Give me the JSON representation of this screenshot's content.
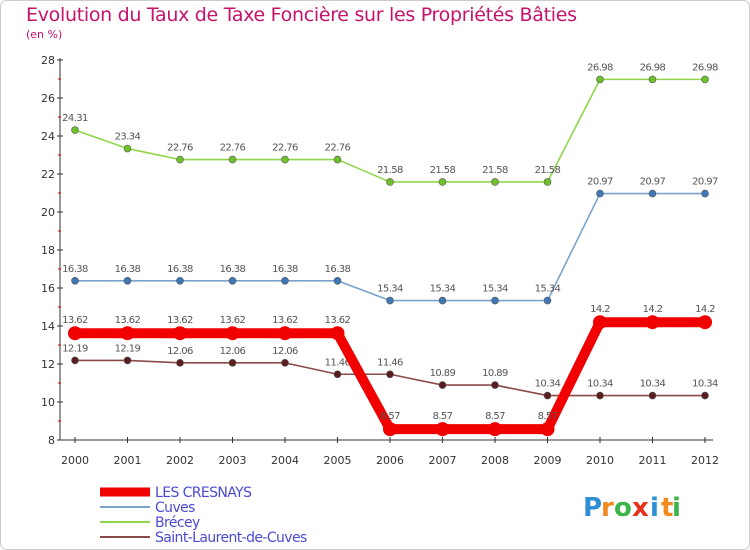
{
  "chart_data": {
    "type": "line",
    "title": "Evolution du Taux de Taxe Foncière sur les Propriétés Bâties",
    "unit_label": "(en %)",
    "ylim": [
      8,
      28
    ],
    "y_ticks": [
      "8",
      "10",
      "12",
      "14",
      "16",
      "18",
      "20",
      "22",
      "24",
      "26",
      "28"
    ],
    "x": [
      "2000",
      "2001",
      "2002",
      "2003",
      "2004",
      "2005",
      "2006",
      "2007",
      "2008",
      "2009",
      "2010",
      "2011",
      "2012"
    ],
    "series": [
      {
        "name": "Brécey",
        "color": "#8fd64a",
        "marker": "#6fc02a",
        "values": [
          24.31,
          23.34,
          22.76,
          22.76,
          22.76,
          22.76,
          21.58,
          21.58,
          21.58,
          21.58,
          26.98,
          26.98,
          26.98
        ],
        "labels": [
          "24.31",
          "23.34",
          "22.76",
          "22.76",
          "22.76",
          "22.76",
          "21.58",
          "21.58",
          "21.58",
          "21.58",
          "26.98",
          "26.98",
          "26.98"
        ]
      },
      {
        "name": "Cuves",
        "color": "#7aa3cc",
        "marker": "#3f78b5",
        "values": [
          16.38,
          16.38,
          16.38,
          16.38,
          16.38,
          16.38,
          15.34,
          15.34,
          15.34,
          15.34,
          20.97,
          20.97,
          20.97
        ],
        "labels": [
          "16.38",
          "16.38",
          "16.38",
          "16.38",
          "16.38",
          "16.38",
          "15.34",
          "15.34",
          "15.34",
          "15.34",
          "20.97",
          "20.97",
          "20.97"
        ]
      },
      {
        "name": "Saint-Laurent-de-Cuves",
        "color": "#8a4a4a",
        "marker": "#5a1e1e",
        "values": [
          12.19,
          12.19,
          12.06,
          12.06,
          12.06,
          11.46,
          11.46,
          10.89,
          10.89,
          10.34,
          10.34,
          10.34,
          10.34
        ],
        "labels": [
          "12.19",
          "12.19",
          "12.06",
          "12.06",
          "12.06",
          "11.46",
          "11.46",
          "10.89",
          "10.89",
          "10.34",
          "10.34",
          "10.34",
          "10.34"
        ]
      },
      {
        "name": "LES CRESNAYS",
        "color": "#f00000",
        "marker": "#f00000",
        "values": [
          13.62,
          13.62,
          13.62,
          13.62,
          13.62,
          13.62,
          8.57,
          8.57,
          8.57,
          8.57,
          14.2,
          14.2,
          14.2
        ],
        "labels": [
          "13.62",
          "13.62",
          "13.62",
          "13.62",
          "13.62",
          "13.62",
          "8.57",
          "8.57",
          "8.57",
          "8.57",
          "14.2",
          "14.2",
          "14.2"
        ]
      }
    ],
    "legend": [
      "LES CRESNAYS",
      "Cuves",
      "Brécey",
      "Saint-Laurent-de-Cuves"
    ],
    "legend_position": "bottom-left"
  },
  "brand": {
    "letters": [
      "P",
      "r",
      "o",
      "x",
      "i",
      "t",
      "i"
    ],
    "colors": [
      "#2e8fd6",
      "#f08a1c",
      "#3cb54a",
      "#e8311a",
      "#2e8fd6",
      "#f08a1c",
      "#3cb54a"
    ]
  }
}
